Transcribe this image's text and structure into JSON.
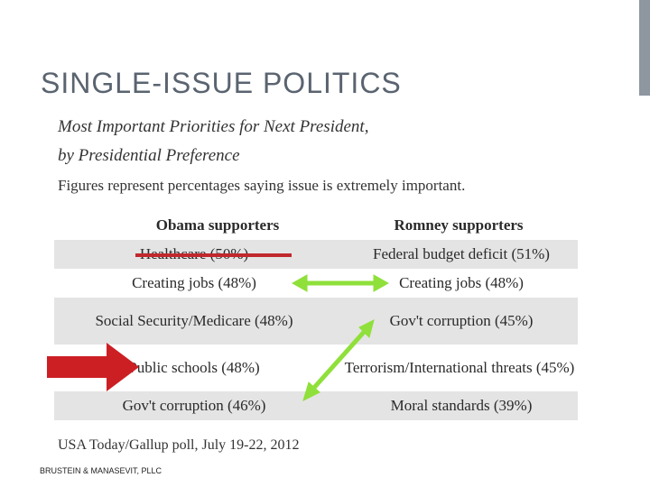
{
  "slide": {
    "title": "SINGLE-ISSUE POLITICS",
    "footer": "BRUSTEIN & MANASEVIT, PLLC"
  },
  "figure": {
    "title_line1": "Most Important Priorities for Next President,",
    "title_line2": "by Presidential Preference",
    "subtitle": "Figures represent percentages saying issue is extremely important.",
    "source": "USA Today/Gallup poll, July 19-22, 2012",
    "columns": {
      "obama": "Obama supporters",
      "romney": "Romney supporters"
    },
    "rows": [
      {
        "obama": "Healthcare (50%)",
        "romney": "Federal budget deficit (51%)"
      },
      {
        "obama": "Creating jobs (48%)",
        "romney": "Creating jobs (48%)"
      },
      {
        "obama": "Social Security/Medicare (48%)",
        "romney": "Gov't corruption (45%)"
      },
      {
        "obama": "Public schools (48%)",
        "romney": "Terrorism/International threats (45%)"
      },
      {
        "obama": "Gov't corruption (46%)",
        "romney": "Moral standards (39%)"
      }
    ]
  },
  "annotations": {
    "strike_color": "#c0282c",
    "pointer_arrow_color": "#cc1f24",
    "match_arrow_color": "#8fe03a",
    "pointer_target": "Public schools (48%)"
  }
}
